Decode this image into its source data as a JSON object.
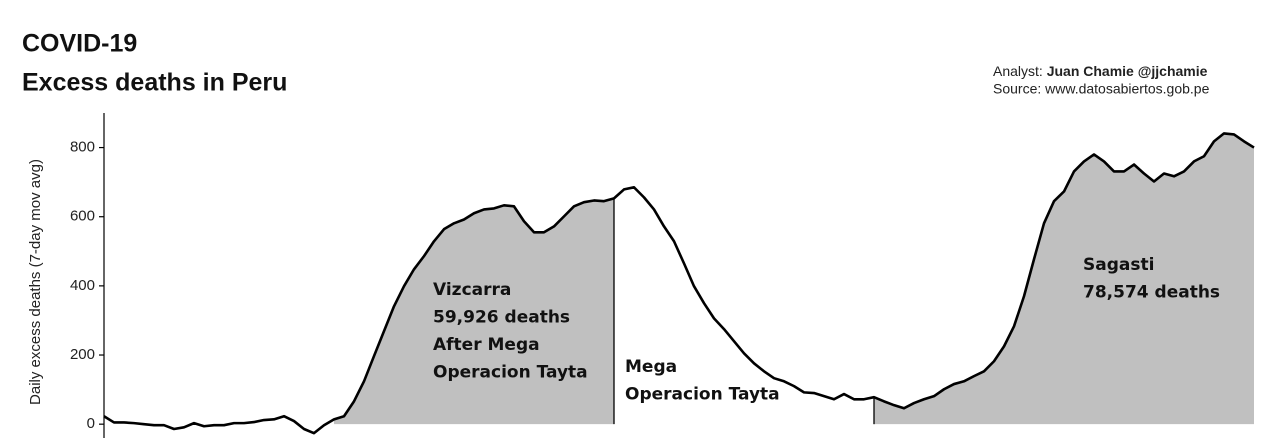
{
  "chart_data": {
    "type": "line",
    "title": [
      "COVID-19",
      "Excess deaths in Peru"
    ],
    "credits": {
      "analyst_label": "Analyst:",
      "analyst_name": "Juan Chamie @jjchamie",
      "source": "Source: www.datosabiertos.gob.pe"
    },
    "y_label": "Daily excess deaths (7-day mov avg)",
    "ylim": [
      -40,
      900
    ],
    "yticks": [
      0,
      200,
      400,
      600,
      800
    ],
    "series": [
      {
        "color": "#000000",
        "values": [
          23,
          5,
          5,
          3,
          0,
          -3,
          -3,
          -14,
          -9,
          3,
          -6,
          -3,
          -3,
          3,
          3,
          6,
          12,
          14,
          23,
          9,
          -14,
          -26,
          -3,
          14,
          23,
          66,
          124,
          197,
          269,
          341,
          399,
          448,
          486,
          529,
          564,
          581,
          592,
          610,
          621,
          624,
          633,
          630,
          587,
          555,
          555,
          572,
          601,
          630,
          642,
          647,
          645,
          653,
          679,
          685,
          656,
          621,
          572,
          529,
          465,
          399,
          350,
          306,
          275,
          240,
          205,
          176,
          153,
          133,
          124,
          110,
          92,
          90,
          81,
          72,
          87,
          72,
          72,
          78,
          66,
          55,
          46,
          61,
          72,
          81,
          101,
          116,
          124,
          139,
          153,
          182,
          225,
          283,
          370,
          477,
          581,
          645,
          673,
          731,
          760,
          780,
          760,
          731,
          731,
          751,
          725,
          702,
          725,
          717,
          731,
          760,
          775,
          818,
          841,
          838,
          818,
          800
        ]
      }
    ],
    "shade_color": "#c0c0c0",
    "periods": [
      {
        "start": 23,
        "end": 51,
        "shaded": true,
        "label": [
          "Vizcarra",
          "59,926 deaths",
          "After Mega",
          "Operacion Tayta"
        ]
      },
      {
        "start": 51,
        "end": 77,
        "shaded": false,
        "label": [
          "Mega",
          "Operacion Tayta"
        ]
      },
      {
        "start": 77,
        "end": 115,
        "shaded": true,
        "label": [
          "Sagasti",
          "78,574 deaths"
        ]
      }
    ]
  }
}
